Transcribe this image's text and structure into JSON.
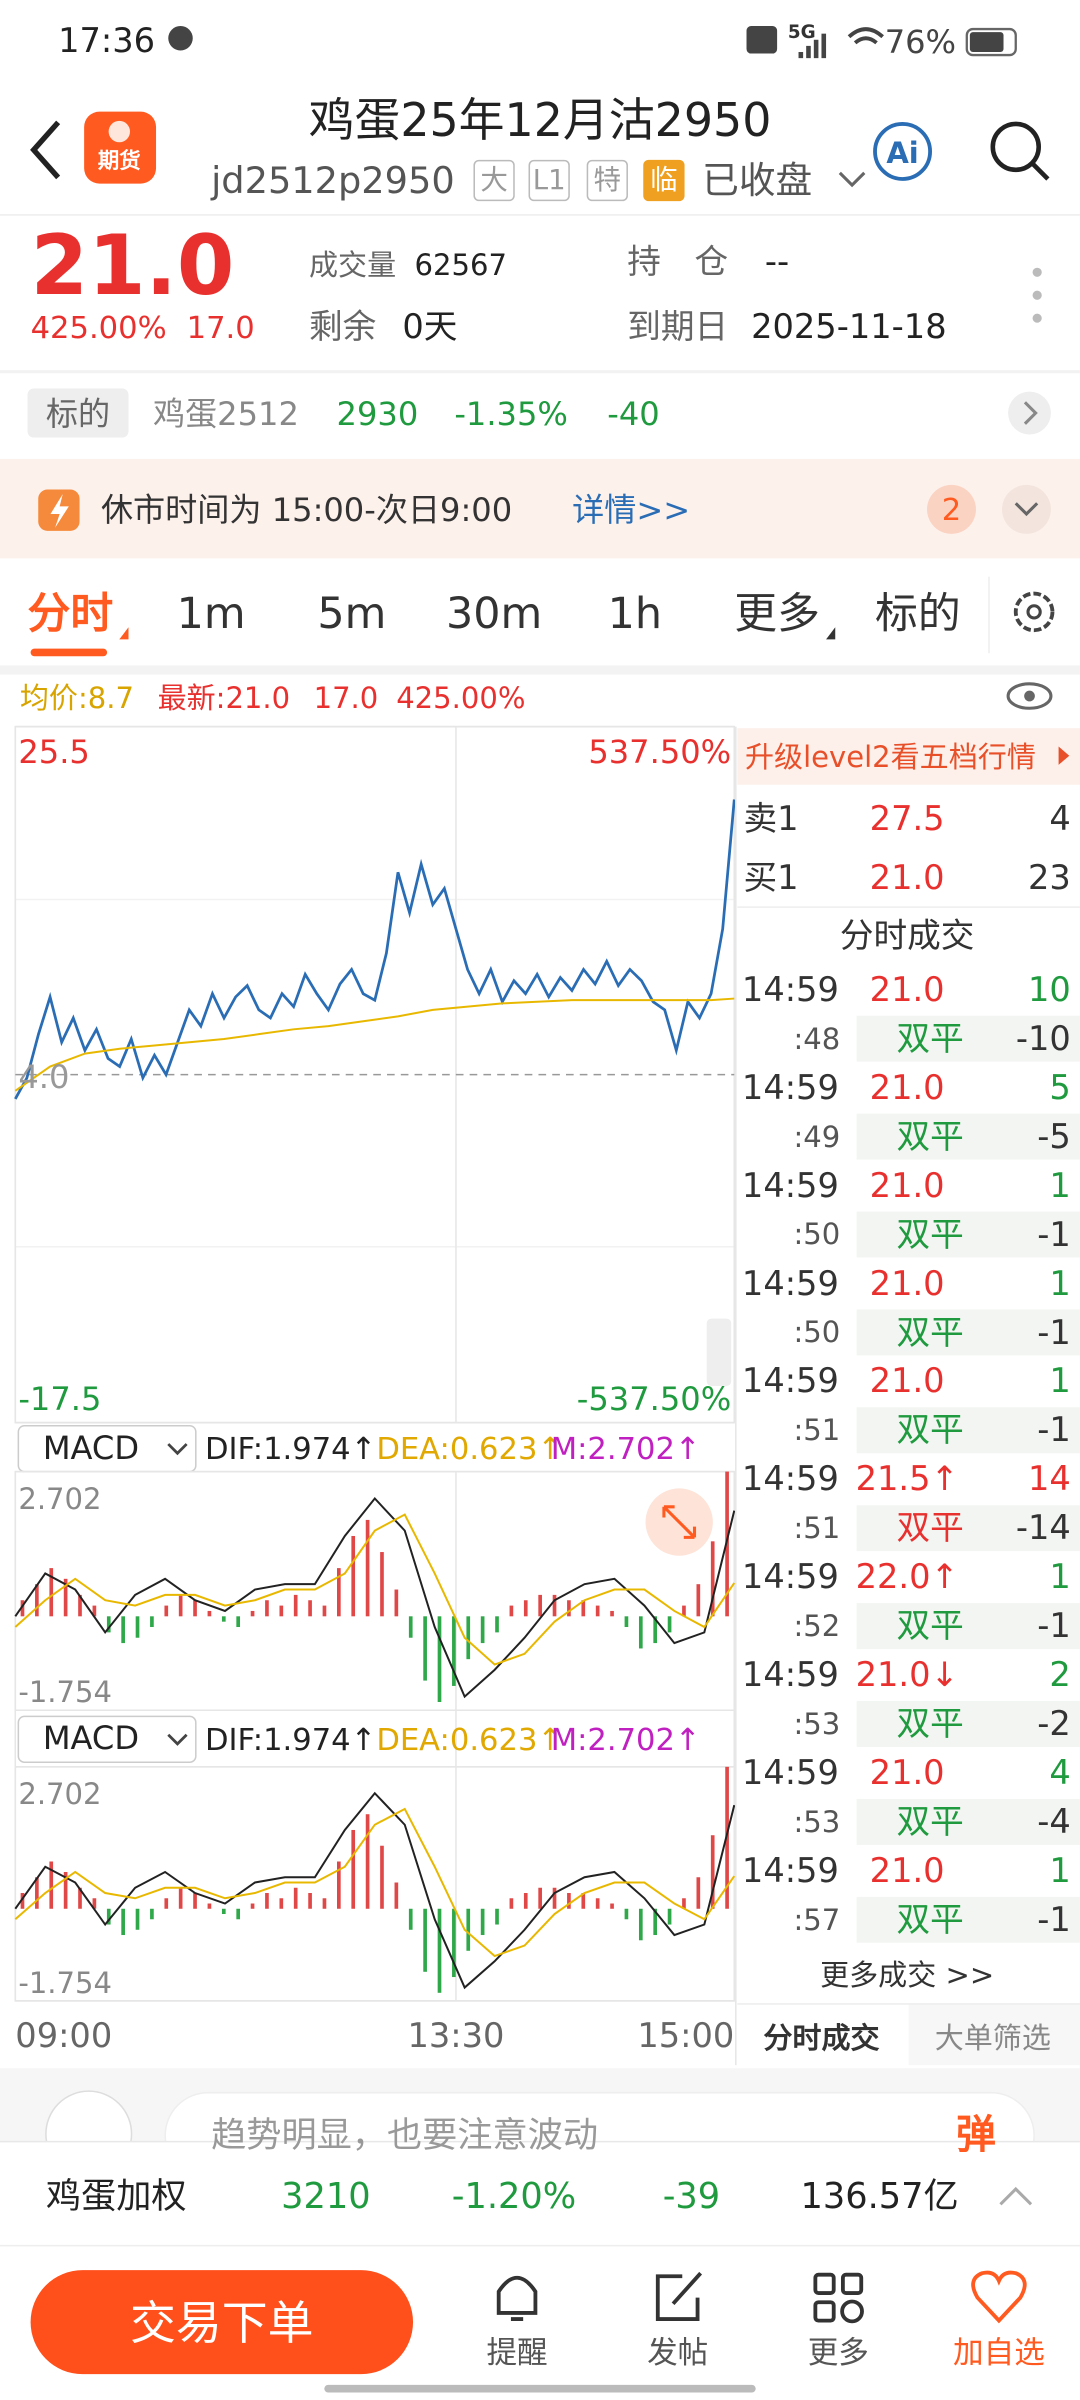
{
  "status_bar": {
    "time": "17:36",
    "network": "5G",
    "battery": "76%"
  },
  "header": {
    "logo": "期货",
    "title": "鸡蛋25年12月沽2950",
    "code": "jd2512p2950",
    "badges": [
      "大",
      "L1",
      "特",
      "临"
    ],
    "status": "已收盘",
    "ai": "Ai"
  },
  "quote": {
    "price": "21.0",
    "change_pct": "425.00%",
    "change": "17.0",
    "volume_label": "成交量",
    "volume": "62567",
    "hold_label": "持　仓",
    "hold": "--",
    "remain_label": "剩余",
    "remain": "0天",
    "expiry_label": "到期日",
    "expiry": "2025-11-18"
  },
  "underlying": {
    "tag": "标的",
    "name": "鸡蛋2512",
    "price": "2930",
    "pct": "-1.35%",
    "change": "-40"
  },
  "notice": {
    "text": "休市时间为 15:00-次日9:00",
    "link": "详情>>",
    "count": "2"
  },
  "tabs": [
    "分时",
    "1m",
    "5m",
    "30m",
    "1h",
    "更多",
    "标的"
  ],
  "info_row": {
    "avg": "均价:8.7",
    "last": "最新:21.0",
    "change": "17.0",
    "pct": "425.00%"
  },
  "chart_data": [
    {
      "type": "line",
      "xlim": [
        0,
        62
      ],
      "xticks": [
        {
          "value": 0,
          "label": "09:00"
        },
        {
          "value": 38,
          "label": "13:30"
        },
        {
          "value": 62,
          "label": "15:00"
        }
      ],
      "ylim": [
        -17.5,
        25.5
      ],
      "yticks": [
        25.5,
        {
          "value": 4,
          "label": "4.0"
        },
        -17.5
      ],
      "y2lim": [
        -537.5,
        537.5
      ],
      "y2ticks": [
        {
          "value": 537.5,
          "label": "537.50%"
        },
        {
          "value": -537.5,
          "label": "-537.50%"
        }
      ],
      "series": [
        {
          "color": "#2a6db5",
          "values": [
            2.5,
            3.8,
            6.5,
            8.8,
            6.0,
            7.5,
            5.5,
            6.8,
            5.0,
            4.5,
            6.2,
            3.8,
            5.2,
            4.0,
            6.0,
            8.0,
            7.0,
            9.0,
            7.5,
            8.8,
            9.5,
            8.0,
            7.5,
            9.0,
            8.2,
            10.2,
            9.0,
            8.0,
            9.6,
            10.5,
            9.0,
            8.6,
            11.5,
            16.5,
            14.0,
            17.0,
            14.5,
            15.5,
            13.0,
            10.5,
            9.0,
            10.5,
            8.5,
            9.8,
            9.0,
            10.2,
            8.8,
            10.0,
            9.2,
            10.5,
            9.6,
            11.0,
            9.5,
            10.5,
            9.8,
            8.5,
            8.0,
            5.5,
            8.5,
            7.5,
            9.0,
            13.0,
            21.0
          ]
        },
        {
          "color": "#e8b800",
          "x": [
            0,
            3,
            6,
            9,
            12,
            15,
            18,
            21,
            24,
            27,
            30,
            33,
            36,
            39,
            42,
            45,
            48,
            51,
            54,
            57,
            60,
            62
          ],
          "values": [
            3.0,
            4.5,
            5.3,
            5.6,
            5.8,
            6.0,
            6.2,
            6.5,
            6.8,
            7.0,
            7.3,
            7.6,
            8.0,
            8.2,
            8.4,
            8.5,
            8.6,
            8.6,
            8.6,
            8.6,
            8.6,
            8.7
          ]
        }
      ]
    },
    {
      "type": "macd",
      "indicator": "MACD",
      "dif_label": "DIF:1.974↑",
      "dea_label": "DEA:0.623↑",
      "m_label": "M:2.702↑",
      "ylim": [
        -1.754,
        2.702
      ],
      "yticks": [
        2.702,
        -1.754
      ],
      "histogram": {
        "up_color": "#e04848",
        "down_color": "#2fa84a",
        "values": [
          0.3,
          0.6,
          0.9,
          0.7,
          0.4,
          0.2,
          -0.3,
          -0.5,
          -0.4,
          -0.2,
          0.2,
          0.4,
          0.3,
          0.1,
          -0.1,
          -0.2,
          0.1,
          0.3,
          0.2,
          0.4,
          0.3,
          0.2,
          0.9,
          1.5,
          1.8,
          1.2,
          0.5,
          -0.4,
          -1.2,
          -1.6,
          -1.3,
          -0.8,
          -0.5,
          -0.3,
          0.2,
          0.3,
          0.4,
          0.4,
          0.3,
          0.3,
          0.2,
          0.1,
          -0.2,
          -0.6,
          -0.5,
          -0.3,
          0.2,
          0.6,
          1.4,
          2.702
        ]
      },
      "series": [
        {
          "color": "#222222",
          "values": [
            0.0,
            0.8,
            0.5,
            -0.3,
            0.4,
            0.7,
            0.3,
            0.1,
            0.5,
            0.6,
            0.6,
            1.5,
            2.2,
            1.6,
            -0.2,
            -1.5,
            -1.0,
            -0.4,
            0.3,
            0.6,
            0.7,
            0.2,
            -0.5,
            -0.3,
            1.974
          ]
        },
        {
          "color": "#e8b800",
          "values": [
            -0.2,
            0.3,
            0.7,
            0.3,
            0.2,
            0.4,
            0.4,
            0.2,
            0.3,
            0.5,
            0.5,
            0.8,
            1.6,
            1.9,
            0.8,
            -0.4,
            -0.9,
            -0.7,
            -0.1,
            0.3,
            0.5,
            0.5,
            0.1,
            -0.2,
            0.623
          ]
        }
      ]
    }
  ],
  "right_panel": {
    "banner": "升级level2看五档行情",
    "ask": {
      "label": "卖1",
      "price": "27.5",
      "volume": "4"
    },
    "bid": {
      "label": "买1",
      "price": "21.0",
      "volume": "23"
    },
    "trades_title": "分时成交",
    "trades": [
      {
        "time": "14:59",
        "price": "21.0",
        "volume": "10",
        "volume_color": "#1f9a3e",
        "second": ":48",
        "type": "双平",
        "change": "-10"
      },
      {
        "time": "14:59",
        "price": "21.0",
        "volume": "5",
        "volume_color": "#1f9a3e",
        "second": ":49",
        "type": "双平",
        "change": "-5"
      },
      {
        "time": "14:59",
        "price": "21.0",
        "volume": "1",
        "volume_color": "#1f9a3e",
        "second": ":50",
        "type": "双平",
        "change": "-1"
      },
      {
        "time": "14:59",
        "price": "21.0",
        "volume": "1",
        "volume_color": "#1f9a3e",
        "second": ":50",
        "type": "双平",
        "change": "-1"
      },
      {
        "time": "14:59",
        "price": "21.0",
        "volume": "1",
        "volume_color": "#1f9a3e",
        "second": ":51",
        "type": "双平",
        "change": "-1"
      },
      {
        "time": "14:59",
        "price": "21.5↑",
        "volume": "14",
        "volume_color": "#e8312f",
        "second": ":51",
        "type": "双平",
        "type_color": "#e8312f",
        "change": "-14"
      },
      {
        "time": "14:59",
        "price": "22.0↑",
        "volume": "1",
        "volume_color": "#1f9a3e",
        "second": ":52",
        "type": "双平",
        "change": "-1"
      },
      {
        "time": "14:59",
        "price": "21.0↓",
        "volume": "2",
        "volume_color": "#1f9a3e",
        "second": ":53",
        "type": "双平",
        "change": "-2"
      },
      {
        "time": "14:59",
        "price": "21.0",
        "volume": "4",
        "volume_color": "#1f9a3e",
        "second": ":53",
        "type": "双平",
        "change": "-4"
      },
      {
        "time": "14:59",
        "price": "21.0",
        "volume": "1",
        "volume_color": "#1f9a3e",
        "second": ":57",
        "type": "双平",
        "change": "-1"
      }
    ],
    "more": "更多成交 >>",
    "tabs": [
      "分时成交",
      "大单筛选"
    ]
  },
  "comment_bar": {
    "placeholder": "趋势明显，也要注意波动",
    "button": "弹"
  },
  "ticker": {
    "name": "鸡蛋加权",
    "price": "3210",
    "pct": "-1.20%",
    "change": "-39",
    "amount": "136.57亿"
  },
  "nav": {
    "trade": "交易下单",
    "items": [
      "提醒",
      "发帖",
      "更多",
      "加自选"
    ]
  }
}
